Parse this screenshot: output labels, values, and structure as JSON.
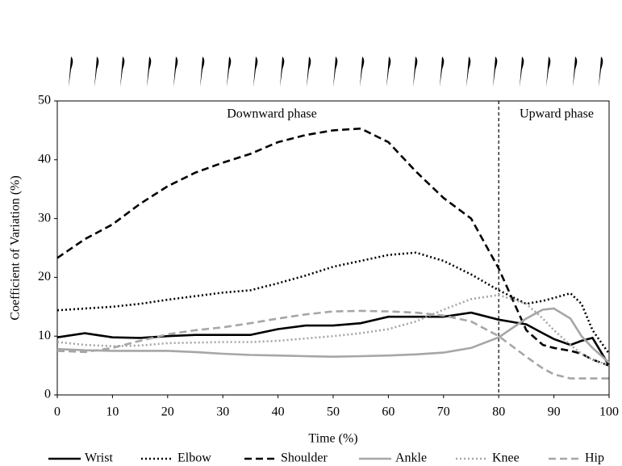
{
  "chart_data": {
    "type": "line",
    "x_label": "Time (%)",
    "y_label": "Coefficient of Variation (%)",
    "annotations": [
      "Downward phase",
      "Upward phase"
    ],
    "vlines": [
      80
    ],
    "x": [
      0,
      5,
      10,
      15,
      20,
      25,
      30,
      35,
      40,
      45,
      50,
      55,
      60,
      65,
      70,
      75,
      80,
      85,
      88,
      90,
      93,
      95,
      97,
      100
    ],
    "series": [
      {
        "name": "Wrist",
        "color": "#000000",
        "line_style": "solid",
        "values": [
          9.8,
          10.5,
          9.8,
          9.7,
          10,
          10.2,
          10.2,
          10.2,
          11.2,
          11.8,
          11.8,
          12.2,
          13.3,
          13.3,
          13.3,
          14,
          12.8,
          12,
          10.5,
          9.5,
          8.5,
          9.2,
          9.7,
          5
        ]
      },
      {
        "name": "Elbow",
        "color": "#000000",
        "line_style": "dotted",
        "values": [
          14.4,
          14.7,
          15,
          15.5,
          16.2,
          16.8,
          17.4,
          17.8,
          19,
          20.3,
          21.8,
          22.8,
          23.8,
          24.2,
          22.8,
          20.5,
          17.8,
          15.5,
          16,
          16.5,
          17.3,
          15.5,
          11,
          7
        ]
      },
      {
        "name": "Shoulder",
        "color": "#000000",
        "line_style": "dashed",
        "values": [
          23.3,
          26.5,
          29,
          32.5,
          35.5,
          37.8,
          39.5,
          41,
          43,
          44.2,
          45,
          45.3,
          43,
          38,
          33.5,
          30,
          21.5,
          11,
          8.5,
          8,
          7.5,
          7,
          6,
          5
        ]
      },
      {
        "name": "Ankle",
        "color": "#a6a6a6",
        "line_style": "solid",
        "values": [
          7.8,
          7.6,
          7.5,
          7.5,
          7.5,
          7.3,
          7,
          6.8,
          6.7,
          6.6,
          6.5,
          6.6,
          6.7,
          6.9,
          7.2,
          8,
          9.8,
          13,
          14.5,
          14.7,
          13,
          10,
          8,
          5.5
        ]
      },
      {
        "name": "Knee",
        "color": "#a6a6a6",
        "line_style": "dotted",
        "values": [
          9,
          8.5,
          8.3,
          8.4,
          8.8,
          8.9,
          9,
          9,
          9.2,
          9.6,
          10,
          10.5,
          11.2,
          12.5,
          14.5,
          16.3,
          17,
          15.5,
          13,
          11,
          8.5,
          7,
          6,
          5
        ]
      },
      {
        "name": "Hip",
        "color": "#a6a6a6",
        "line_style": "dashed",
        "values": [
          7.5,
          7.3,
          8,
          9.2,
          10.3,
          11,
          11.5,
          12.2,
          13,
          13.7,
          14.2,
          14.3,
          14.2,
          14,
          13.5,
          12.5,
          10,
          6.5,
          4.5,
          3.5,
          2.8,
          2.8,
          2.8,
          2.8
        ]
      }
    ],
    "xlim": [
      0,
      100
    ],
    "xticks": [
      0,
      10,
      20,
      30,
      40,
      50,
      60,
      70,
      80,
      90,
      100
    ],
    "ylim": [
      0,
      50
    ],
    "yticks": [
      0,
      10,
      20,
      30,
      40,
      50
    ],
    "legend": "bottom"
  }
}
